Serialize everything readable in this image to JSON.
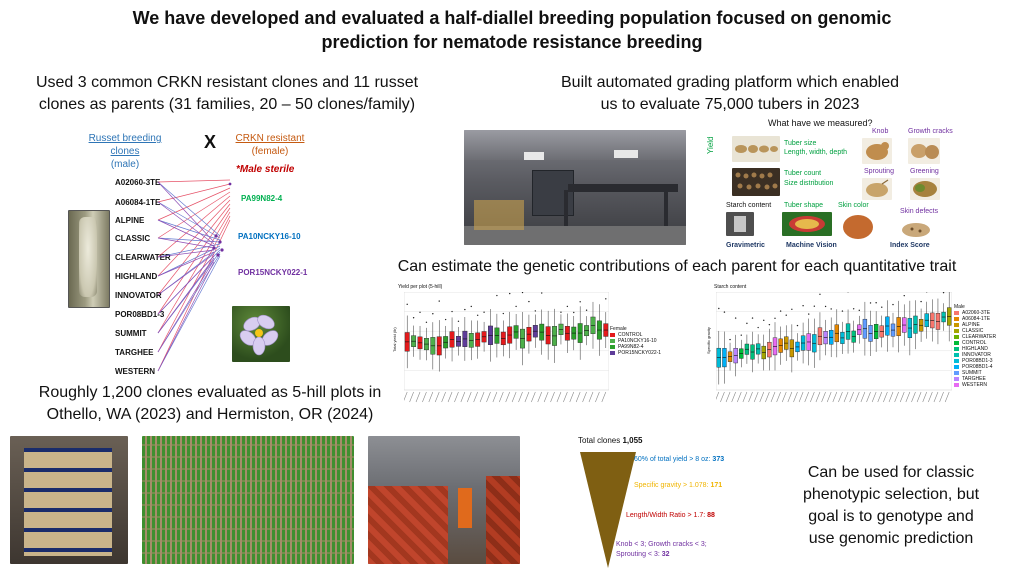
{
  "title": {
    "line1": "We have developed and evaluated a half-diallel breeding population focused on genomic",
    "line2": "prediction for nematode resistance breeding"
  },
  "parents": {
    "heading_line1": "Used 3 common CRKN resistant clones and 11 russet",
    "heading_line2": "clones as parents (31 families, 20 – 50 clones/family)",
    "male_title": "Russet breeding clones",
    "male_sub": "(male)",
    "cross": "X",
    "female_title": "CRKN resistant",
    "female_sub": "(female)",
    "sterile_note": "*Male sterile",
    "males": [
      "A02060-3TE",
      "A06084-1TE",
      "ALPINE",
      "CLASSIC",
      "CLEARWATER",
      "HIGHLAND",
      "INNOVATOR",
      "POR08BD1-3",
      "SUMMIT",
      "TARGHEE",
      "WESTERN"
    ],
    "females": [
      "PA99N82-4",
      "PA10NCKY16-10",
      "POR15NCKY022-1"
    ],
    "colors": {
      "male_title": "#2e75b6",
      "female_title": "#c55a11",
      "female1": "#00b050",
      "female2": "#0070c0",
      "female3": "#7030a0",
      "sterile": "#c00000"
    }
  },
  "grading": {
    "heading_line1": "Built automated grading platform which enabled",
    "heading_line2": "us to evaluate 75,000 tubers in 2023",
    "measured_title": "What have we measured?",
    "yield_label": "Yield",
    "tuber_size": "Tuber size",
    "tuber_size_detail": "Length, width, depth",
    "tuber_count": "Tuber count",
    "size_dist": "Size distribution",
    "knob": "Knob",
    "growth_cracks": "Growth cracks",
    "sprouting": "Sprouting",
    "greening": "Greening",
    "starch_content": "Starch content",
    "tuber_shape": "Tuber shape",
    "skin_color": "Skin color",
    "skin_defects": "Skin defects",
    "gravimetric": "Gravimetric",
    "machine_vision": "Machine Vision",
    "index_score": "Index Score"
  },
  "genetics": {
    "heading": "Can estimate the genetic contributions of each parent for each quantitative trait"
  },
  "chart_data": [
    {
      "type": "box",
      "title": "Yield per plot (5-hill)",
      "ylabel": "Total yield (lb)",
      "legend_title": "Female",
      "series": [
        {
          "name": "CONTROL",
          "color": "#e41a1c"
        },
        {
          "name": "PA10NCKY16-10",
          "color": "#4daf4a"
        },
        {
          "name": "PA99N82-4",
          "color": "#2ca02c"
        },
        {
          "name": "POR15NCKY022-1",
          "color": "#5e3c99"
        }
      ],
      "legend_placement": "right",
      "grid": true
    },
    {
      "type": "box",
      "title": "Starch content",
      "ylabel": "Specific gravity",
      "legend_title": "Male",
      "series": [
        {
          "name": "A02060-3TE",
          "color": "#f8766d"
        },
        {
          "name": "A06084-1TE",
          "color": "#e58700"
        },
        {
          "name": "ALPINE",
          "color": "#c99800"
        },
        {
          "name": "CLASSIC",
          "color": "#a3a500"
        },
        {
          "name": "CLEARWATER",
          "color": "#6bb100"
        },
        {
          "name": "CONTROL",
          "color": "#00ba38"
        },
        {
          "name": "HIGHLAND",
          "color": "#00bf7d"
        },
        {
          "name": "INNOVATOR",
          "color": "#00c0af"
        },
        {
          "name": "POR08BD1-3",
          "color": "#00bcd8"
        },
        {
          "name": "POR08BD1-4",
          "color": "#00b0f6"
        },
        {
          "name": "SUMMIT",
          "color": "#619cff"
        },
        {
          "name": "TARGHEE",
          "color": "#b983ff"
        },
        {
          "name": "WESTERN",
          "color": "#e76bf3"
        }
      ],
      "legend_placement": "right",
      "grid": true
    }
  ],
  "field": {
    "heading_line1": "Roughly 1,200 clones evaluated as 5-hill plots in",
    "heading_line2": "Othello, WA (2023) and Hermiston, OR (2024)"
  },
  "funnel": {
    "total_label": "Total clones",
    "total_value": "1,055",
    "steps": [
      {
        "text": "60% of total yield > 8 oz:",
        "value": "373",
        "color": "#0070c0"
      },
      {
        "text": "Specific gravity > 1.078:",
        "value": "171",
        "color": "#f0b400"
      },
      {
        "text": "Length/Width Ratio > 1.7:",
        "value": "88",
        "color": "#c00000"
      },
      {
        "text": "Knob < 3;  Growth cracks < 3;",
        "text2": "Sprouting < 3:",
        "value": "32",
        "color": "#7030a0"
      }
    ],
    "fill": "#7f5f12"
  },
  "conclusion": {
    "line1": "Can be used for classic",
    "line2": "phenotypic selection, but",
    "line3": "goal is to genotype and",
    "line4": "use genomic prediction"
  }
}
